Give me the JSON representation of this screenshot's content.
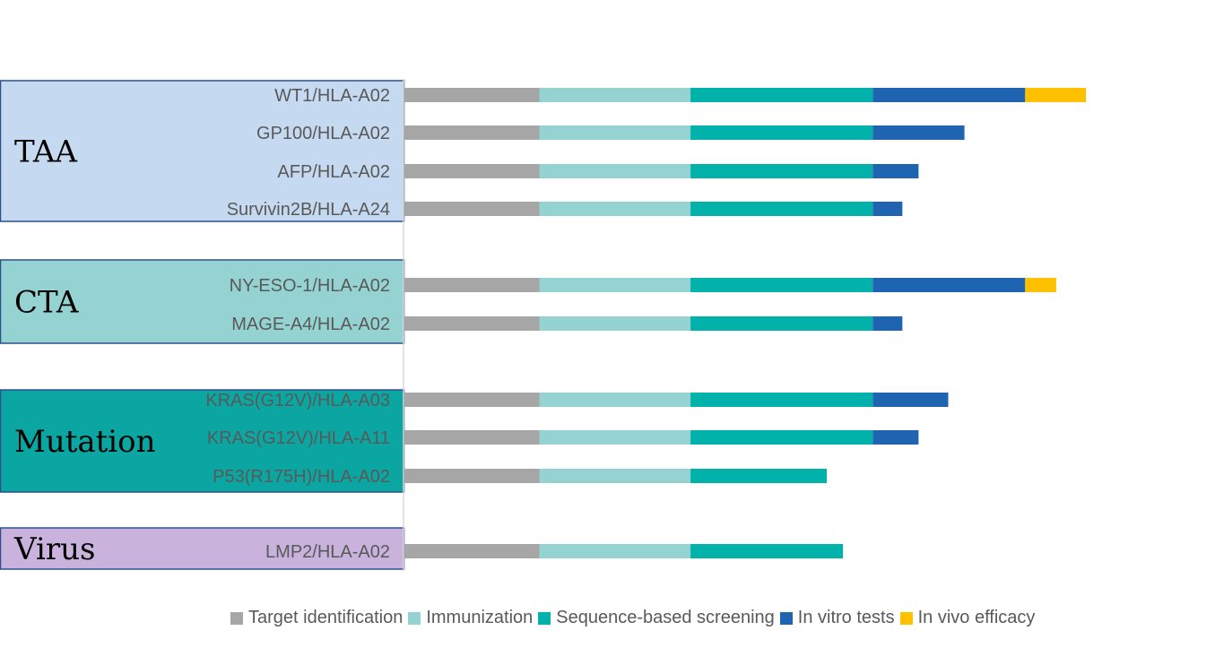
{
  "chart_data": {
    "type": "bar",
    "orientation": "horizontal",
    "stacked": true,
    "groups": [
      {
        "label": "TAA",
        "color": "#c5d9f1",
        "rows": [
          "WT1/HLA-A02",
          "GP100/HLA-A02",
          "AFP/HLA-A02",
          "Survivin2B/HLA-A24"
        ]
      },
      {
        "label": "CTA",
        "color": "#95d3d3",
        "rows": [
          "NY-ESO-1/HLA-A02",
          "MAGE-A4/HLA-A02"
        ]
      },
      {
        "label": "Mutation",
        "color": "#0ba6a1",
        "rows": [
          "KRAS(G12V)/HLA-A03",
          "KRAS(G12V)/HLA-A11",
          "P53(R175H)/HLA-A02"
        ]
      },
      {
        "label": "Virus",
        "color": "#c9b2dc",
        "rows": [
          "LMP2/HLA-A02"
        ]
      }
    ],
    "categories": [
      "WT1/HLA-A02",
      "GP100/HLA-A02",
      "AFP/HLA-A02",
      "Survivin2B/HLA-A24",
      "NY-ESO-1/HLA-A02",
      "MAGE-A4/HLA-A02",
      "KRAS(G12V)/HLA-A03",
      "KRAS(G12V)/HLA-A11",
      "P53(R175H)/HLA-A02",
      "LMP2/HLA-A02"
    ],
    "series": [
      {
        "name": "Target identification",
        "color": "#a6a6a6",
        "values": [
          1,
          1,
          1,
          1,
          1,
          1,
          1,
          1,
          1,
          1
        ]
      },
      {
        "name": "Immunization",
        "color": "#95d3d3",
        "values": [
          1.12,
          1.12,
          1.12,
          1.12,
          1.12,
          1.12,
          1.12,
          1.12,
          1.12,
          1.12
        ]
      },
      {
        "name": "Sequence-based screening",
        "color": "#00b2a9",
        "values": [
          1.35,
          1.35,
          1.35,
          1.35,
          1.35,
          1.35,
          1.35,
          1.35,
          1.01,
          1.13
        ]
      },
      {
        "name": "In vitro tests",
        "color": "#1f64b1",
        "values": [
          1.13,
          0.68,
          0.34,
          0.22,
          1.13,
          0.22,
          0.56,
          0.34,
          0,
          0
        ]
      },
      {
        "name": "In vivo efficacy",
        "color": "#ffc000",
        "values": [
          0.45,
          0,
          0,
          0,
          0.23,
          0,
          0,
          0,
          0,
          0
        ]
      }
    ],
    "legend_position": "bottom",
    "grid": false
  }
}
